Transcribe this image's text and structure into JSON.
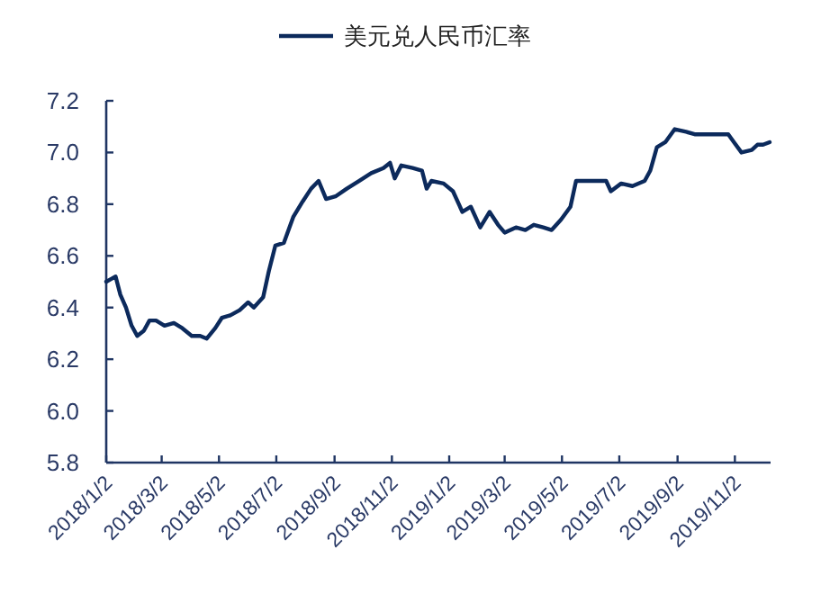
{
  "chart_data": {
    "type": "line",
    "legend": "top",
    "marker": "none",
    "line_style": "solid",
    "grid": false,
    "xlim": [
      "2018-01-02",
      "2019-12-10"
    ],
    "ylim": [
      5.8,
      7.2
    ],
    "yticks": [
      5.8,
      {
        "value": 6,
        "label": "6.0"
      },
      6.2,
      6.4,
      6.6,
      6.8,
      {
        "value": 7,
        "label": "7.0"
      },
      7.2
    ],
    "xticks": [
      {
        "value": "2018-01-02",
        "label": "2018/1/2"
      },
      {
        "value": "2018-03-02",
        "label": "2018/3/2"
      },
      {
        "value": "2018-05-02",
        "label": "2018/5/2"
      },
      {
        "value": "2018-07-02",
        "label": "2018/7/2"
      },
      {
        "value": "2018-09-02",
        "label": "2018/9/2"
      },
      {
        "value": "2018-11-02",
        "label": "2018/11/2"
      },
      {
        "value": "2019-01-02",
        "label": "2019/1/2"
      },
      {
        "value": "2019-03-02",
        "label": "2019/3/2"
      },
      {
        "value": "2019-05-02",
        "label": "2019/5/2"
      },
      {
        "value": "2019-07-02",
        "label": "2019/7/2"
      },
      {
        "value": "2019-09-02",
        "label": "2019/9/2"
      },
      {
        "value": "2019-11-02",
        "label": "2019/11/2"
      }
    ],
    "series": [
      {
        "name": "美元兑人民币汇率",
        "color": "#0c2a5c",
        "x": [
          "2018-01-02",
          "2018-01-07",
          "2018-01-12",
          "2018-01-17",
          "2018-01-23",
          "2018-01-29",
          "2018-02-04",
          "2018-02-11",
          "2018-02-17",
          "2018-02-24",
          "2018-03-05",
          "2018-03-15",
          "2018-03-24",
          "2018-04-03",
          "2018-04-12",
          "2018-04-19",
          "2018-04-28",
          "2018-05-05",
          "2018-05-14",
          "2018-05-24",
          "2018-06-02",
          "2018-06-08",
          "2018-06-18",
          "2018-06-24",
          "2018-07-01",
          "2018-07-10",
          "2018-07-20",
          "2018-07-30",
          "2018-08-08",
          "2018-08-16",
          "2018-08-24",
          "2018-09-03",
          "2018-09-15",
          "2018-09-28",
          "2018-10-11",
          "2018-10-24",
          "2018-10-31",
          "2018-11-05",
          "2018-11-12",
          "2018-11-24",
          "2018-12-04",
          "2018-12-09",
          "2018-12-14",
          "2018-12-27",
          "2019-01-06",
          "2019-01-16",
          "2019-01-25",
          "2019-02-04",
          "2019-02-14",
          "2019-02-23",
          "2019-03-02",
          "2019-03-14",
          "2019-03-24",
          "2019-04-02",
          "2019-04-12",
          "2019-04-21",
          "2019-05-01",
          "2019-05-11",
          "2019-05-17",
          "2019-05-30",
          "2019-06-18",
          "2019-06-23",
          "2019-07-04",
          "2019-07-16",
          "2019-07-29",
          "2019-08-04",
          "2019-08-11",
          "2019-08-20",
          "2019-08-30",
          "2019-09-11",
          "2019-09-21",
          "2019-10-10",
          "2019-10-26",
          "2019-11-01",
          "2019-11-09",
          "2019-11-20",
          "2019-11-26",
          "2019-12-02",
          "2019-12-09"
        ],
        "values": [
          6.5,
          6.51,
          6.52,
          6.45,
          6.4,
          6.33,
          6.29,
          6.31,
          6.35,
          6.35,
          6.33,
          6.34,
          6.32,
          6.29,
          6.29,
          6.28,
          6.32,
          6.36,
          6.37,
          6.39,
          6.42,
          6.4,
          6.44,
          6.54,
          6.64,
          6.65,
          6.75,
          6.81,
          6.86,
          6.89,
          6.82,
          6.83,
          6.86,
          6.89,
          6.92,
          6.94,
          6.96,
          6.9,
          6.95,
          6.94,
          6.93,
          6.86,
          6.89,
          6.88,
          6.85,
          6.77,
          6.79,
          6.71,
          6.77,
          6.72,
          6.69,
          6.71,
          6.7,
          6.72,
          6.71,
          6.7,
          6.74,
          6.79,
          6.89,
          6.89,
          6.89,
          6.85,
          6.88,
          6.87,
          6.89,
          6.93,
          7.02,
          7.04,
          7.09,
          7.08,
          7.07,
          7.07,
          7.07,
          7.04,
          7.0,
          7.01,
          7.03,
          7.03,
          7.04
        ]
      }
    ]
  }
}
